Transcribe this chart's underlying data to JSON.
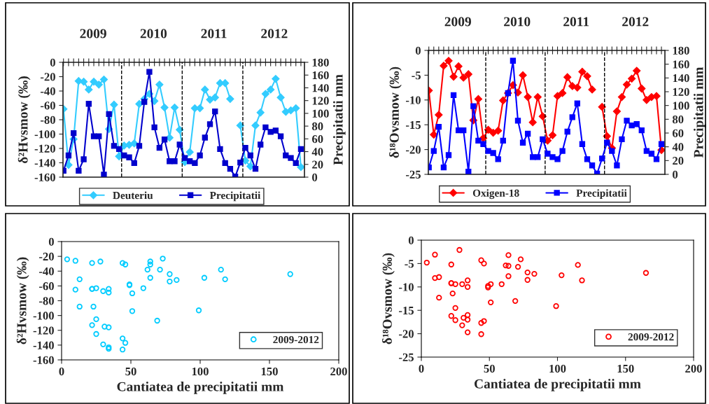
{
  "chart_data": [
    {
      "type": "line",
      "categories": [
        null,
        null,
        null,
        null,
        null,
        null,
        null,
        null,
        null,
        null,
        null,
        null,
        null,
        null,
        null,
        null,
        null,
        null,
        null,
        null,
        null,
        null,
        null,
        null,
        null,
        null,
        null,
        null,
        null,
        null,
        null,
        null,
        null,
        null,
        null,
        null,
        null,
        null,
        null,
        null,
        null,
        null,
        null,
        null,
        null,
        null,
        null,
        null
      ],
      "ylabel": "δ²Hvsmow (‰)",
      "y2label": "Precipitatii mm",
      "ylim": [
        -160,
        0
      ],
      "yticks": [
        -160,
        -140,
        -120,
        -100,
        -80,
        -60,
        -40,
        -20,
        0
      ],
      "y2lim": [
        0,
        180
      ],
      "y2ticks": [
        0,
        20,
        40,
        60,
        80,
        100,
        120,
        140,
        160,
        180
      ],
      "annotations": [
        "2009",
        "2010",
        "2011",
        "2012"
      ],
      "legend": "bottom",
      "grid": false,
      "tick_labels": "y",
      "series": [
        {
          "name": "Deuteriu",
          "color": "#33ccff",
          "marker": "diamond",
          "values": [
            -65,
            -143,
            -107,
            -26,
            -27,
            -38,
            -27,
            -31,
            -24,
            -93,
            -59,
            -131,
            -116,
            -115,
            -113,
            -58,
            -51,
            -44,
            -54,
            -31,
            -63,
            -105,
            -63,
            -94,
            -139,
            -125,
            -64,
            -64,
            -38,
            -52,
            -49,
            -29,
            -29,
            -51,
            null,
            -88,
            -137,
            -145,
            -88,
            -70,
            -44,
            -38,
            -23,
            -49,
            -69,
            -67,
            -64,
            -146
          ]
        },
        {
          "name": "Precipitatii",
          "color": "#0000cc",
          "marker": "square",
          "axis": "y2",
          "values": [
            10,
            34,
            69,
            10,
            28,
            115,
            64,
            64,
            4,
            99,
            49,
            44,
            34,
            31,
            22,
            49,
            118,
            165,
            78,
            46,
            59,
            25,
            25,
            51,
            30,
            25,
            22,
            34,
            62,
            83,
            103,
            44,
            22,
            13,
            1,
            23,
            46,
            34,
            13,
            51,
            78,
            71,
            73,
            64,
            34,
            30,
            22,
            44
          ]
        }
      ]
    },
    {
      "type": "line",
      "categories": [
        null,
        null,
        null,
        null,
        null,
        null,
        null,
        null,
        null,
        null,
        null,
        null,
        null,
        null,
        null,
        null,
        null,
        null,
        null,
        null,
        null,
        null,
        null,
        null,
        null,
        null,
        null,
        null,
        null,
        null,
        null,
        null,
        null,
        null,
        null,
        null,
        null,
        null,
        null,
        null,
        null,
        null,
        null,
        null,
        null,
        null,
        null,
        null
      ],
      "ylabel": "δ¹⁸Ovsmow (‰)",
      "y2label": "Precipitatii mm",
      "ylim": [
        -25,
        0
      ],
      "yticks": [
        -25,
        -20,
        -15,
        -10,
        -5,
        0
      ],
      "y2lim": [
        0,
        180
      ],
      "y2ticks": [
        0,
        20,
        40,
        60,
        80,
        100,
        120,
        140,
        160,
        180
      ],
      "annotations": [
        "2009",
        "2010",
        "2011",
        "2012"
      ],
      "legend": "bottom",
      "grid": false,
      "tick_labels": "y",
      "series": [
        {
          "name": "Oxigen-18",
          "color": "#ff0000",
          "marker": "diamond",
          "values": [
            -8.1,
            -17.0,
            -13.0,
            -3.1,
            -2.1,
            -5.3,
            -3.2,
            -5.5,
            -4.8,
            -14.1,
            -9.8,
            -17.7,
            -16.0,
            -16.6,
            -16.2,
            -10.1,
            -8.6,
            -7.0,
            -8.5,
            -5.0,
            -9.4,
            -14.5,
            -9.4,
            -13.3,
            -18.2,
            -17.1,
            -9.2,
            -8.6,
            -5.4,
            -7.2,
            -7.5,
            -4.3,
            -5.2,
            -7.9,
            null,
            -11.4,
            -17.3,
            -19.7,
            -12.3,
            -9.4,
            -6.9,
            -5.7,
            -4.1,
            -7.7,
            -10.0,
            -9.4,
            -9.2,
            -20.1
          ]
        },
        {
          "name": "Precipitatii",
          "color": "#0000ff",
          "marker": "square",
          "axis": "y2",
          "values": [
            10,
            34,
            69,
            10,
            28,
            115,
            64,
            64,
            4,
            99,
            49,
            44,
            34,
            31,
            22,
            49,
            118,
            165,
            78,
            46,
            59,
            25,
            25,
            51,
            30,
            25,
            22,
            34,
            62,
            83,
            103,
            44,
            22,
            13,
            1,
            23,
            46,
            34,
            13,
            51,
            78,
            71,
            73,
            64,
            34,
            30,
            22,
            44
          ]
        }
      ]
    },
    {
      "type": "scatter",
      "xlabel": "Cantiatea de precipitatii mm",
      "ylabel": "δ²Hvsmow (‰)",
      "xlim": [
        0,
        200
      ],
      "xticks": [
        0,
        50,
        100,
        150,
        200
      ],
      "ylim": [
        -160,
        0
      ],
      "yticks": [
        -160,
        -140,
        -120,
        -100,
        -80,
        -60,
        -40,
        -20,
        0
      ],
      "legend": "bottom right",
      "grid": false,
      "marker": "circle",
      "x": [
        10,
        34,
        69,
        10,
        28,
        115,
        64,
        64,
        4,
        99,
        49,
        44,
        34,
        31,
        22,
        49,
        118,
        165,
        78,
        46,
        59,
        25,
        25,
        51,
        30,
        25,
        22,
        34,
        62,
        83,
        103,
        44,
        22,
        13,
        23,
        46,
        34,
        13,
        51,
        78,
        71,
        73,
        64,
        34,
        30,
        22,
        44
      ],
      "series": [
        {
          "name": "2009-2012",
          "color": "#00ccff",
          "values": [
            -65,
            -143,
            -107,
            -26,
            -27,
            -38,
            -27,
            -31,
            -24,
            -93,
            -59,
            -131,
            -116,
            -115,
            -113,
            -58,
            -51,
            -44,
            -54,
            -31,
            -63,
            -105,
            -63,
            -94,
            -139,
            -125,
            -64,
            -64,
            -38,
            -52,
            -49,
            -29,
            -29,
            -51,
            -88,
            -137,
            -145,
            -88,
            -70,
            -44,
            -38,
            -23,
            -49,
            -69,
            -67,
            -64,
            -146
          ]
        }
      ]
    },
    {
      "type": "scatter",
      "xlabel": "Cantiatea de precipitatii mm",
      "ylabel": "δ¹⁸Ovsmow (‰)",
      "xlim": [
        0,
        200
      ],
      "xticks": [
        0,
        50,
        100,
        150,
        200
      ],
      "ylim": [
        -25,
        0
      ],
      "yticks": [
        -25,
        -20,
        -15,
        -10,
        -5,
        0
      ],
      "legend": "bottom right",
      "grid": false,
      "marker": "circle",
      "x": [
        10,
        34,
        69,
        10,
        28,
        115,
        64,
        64,
        4,
        99,
        49,
        44,
        34,
        31,
        22,
        49,
        118,
        165,
        78,
        46,
        59,
        25,
        25,
        51,
        30,
        25,
        22,
        34,
        62,
        83,
        103,
        44,
        22,
        13,
        23,
        46,
        34,
        13,
        51,
        78,
        71,
        73,
        64,
        34,
        30,
        22,
        44
      ],
      "series": [
        {
          "name": "2009-2012",
          "color": "#ff0000",
          "values": [
            -8.1,
            -17.0,
            -13.0,
            -3.1,
            -2.1,
            -5.3,
            -3.2,
            -5.5,
            -4.8,
            -14.1,
            -9.8,
            -17.7,
            -16.0,
            -16.6,
            -16.2,
            -10.1,
            -8.6,
            -7.0,
            -8.5,
            -5.0,
            -9.4,
            -14.5,
            -9.4,
            -13.3,
            -18.2,
            -17.1,
            -9.2,
            -8.6,
            -5.4,
            -7.2,
            -7.5,
            -4.3,
            -5.2,
            -7.9,
            -11.4,
            -17.3,
            -19.7,
            -12.3,
            -9.4,
            -6.9,
            -5.7,
            -4.1,
            -7.7,
            -10.0,
            -9.4,
            -9.2,
            -20.1
          ]
        }
      ]
    }
  ]
}
